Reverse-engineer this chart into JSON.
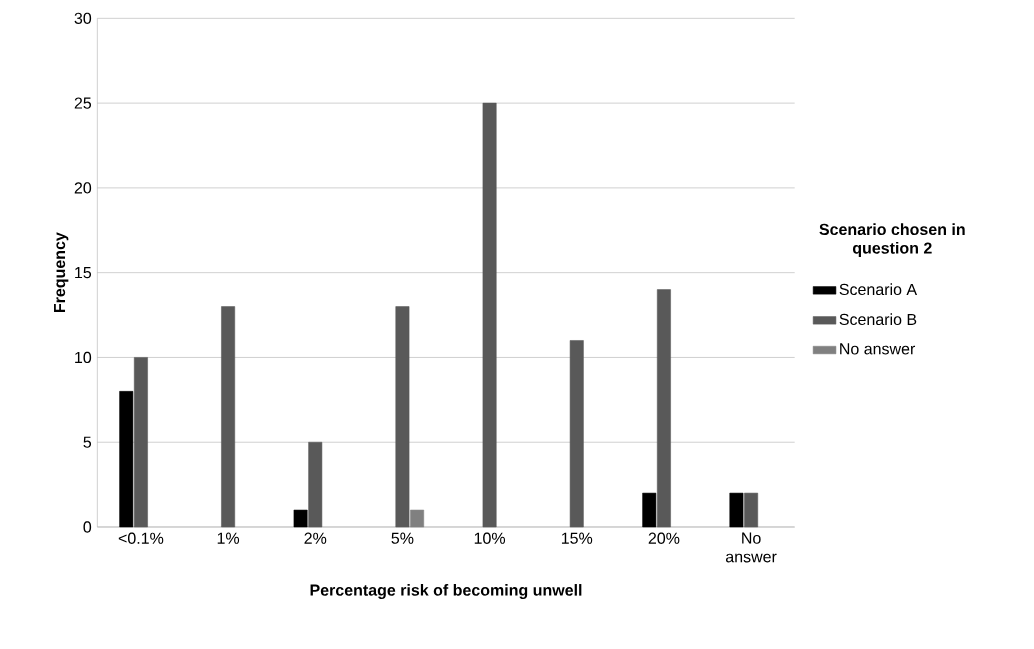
{
  "chart_data": {
    "type": "bar",
    "xlabel": "Percentage risk of becoming unwell",
    "ylabel": "Frequency",
    "legend_title": "Scenario chosen in question 2",
    "categories": [
      "<0.1%",
      "1%",
      "2%",
      "5%",
      "10%",
      "15%",
      "20%",
      "No answer"
    ],
    "series": [
      {
        "name": "Scenario A",
        "color": "#000000",
        "values": [
          8,
          0,
          1,
          0,
          0,
          0,
          2,
          2
        ]
      },
      {
        "name": "Scenario B",
        "color": "#595959",
        "values": [
          10,
          13,
          5,
          13,
          25,
          11,
          14,
          2
        ]
      },
      {
        "name": "No answer",
        "color": "#808080",
        "values": [
          0,
          0,
          0,
          1,
          0,
          0,
          0,
          0
        ]
      }
    ],
    "ylim": [
      0,
      30
    ],
    "yticks": [
      0,
      5,
      10,
      15,
      20,
      25,
      30
    ],
    "grid": "y",
    "legend": "right"
  }
}
